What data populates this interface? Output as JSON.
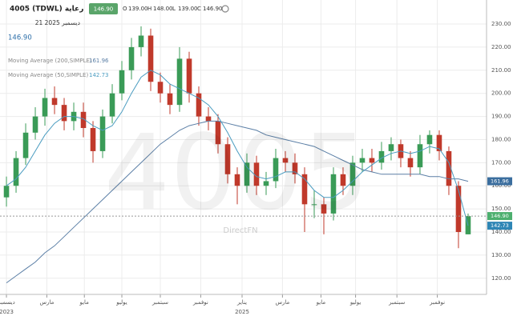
{
  "chart_data": {
    "type": "candlestick",
    "title": "4005 (TDWL) رعاية",
    "subtitle": "21 ديسمبر 2025",
    "last_label": "146.90",
    "readout": {
      "keys": [
        "O",
        "H",
        "L",
        "C"
      ],
      "labels": [
        "139.00",
        "148.00",
        "139.00",
        "146.90"
      ]
    },
    "watermark": "4005",
    "brand": "DirectFN",
    "up_color": "#3a9b57",
    "down_color": "#c0392b",
    "ohlc": {
      "open": [
        155,
        160,
        172,
        183,
        190,
        198,
        195,
        188,
        192,
        185,
        175,
        190,
        200,
        210,
        220,
        225,
        205,
        200,
        195,
        215,
        200,
        190,
        188,
        178,
        165,
        160,
        170,
        160,
        162,
        172,
        170,
        165,
        152,
        152,
        148,
        165,
        160,
        170,
        172,
        170,
        175,
        178,
        172,
        168,
        178,
        182,
        175,
        160,
        139
      ],
      "high": [
        164,
        175,
        187,
        194,
        202,
        203,
        198,
        196,
        196,
        188,
        193,
        204,
        214,
        224,
        229,
        228,
        209,
        204,
        220,
        218,
        203,
        194,
        191,
        181,
        168,
        174,
        173,
        166,
        176,
        175,
        174,
        168,
        158,
        155,
        168,
        168,
        173,
        176,
        176,
        179,
        181,
        180,
        175,
        182,
        184,
        184,
        177,
        162,
        148
      ],
      "low": [
        151,
        157,
        169,
        180,
        186,
        191,
        184,
        184,
        181,
        170,
        172,
        187,
        197,
        206,
        216,
        201,
        196,
        191,
        192,
        196,
        186,
        184,
        174,
        161,
        152,
        157,
        156,
        156,
        159,
        166,
        161,
        140,
        146,
        139,
        145,
        156,
        156,
        166,
        166,
        167,
        171,
        168,
        164,
        165,
        174,
        171,
        156,
        133,
        139
      ],
      "close": [
        160,
        172,
        183,
        190,
        198,
        195,
        188,
        192,
        185,
        175,
        190,
        200,
        210,
        220,
        225,
        205,
        200,
        195,
        215,
        200,
        190,
        188,
        178,
        165,
        160,
        170,
        160,
        162,
        172,
        170,
        165,
        152,
        152,
        148,
        165,
        160,
        170,
        172,
        170,
        175,
        178,
        172,
        168,
        178,
        182,
        175,
        160,
        140,
        146.9
      ]
    },
    "series": [
      {
        "name": "Moving Average (200,SIMPLE)",
        "color": "#5b7fa6",
        "value_label": "161.96",
        "values": [
          118,
          121,
          124,
          127,
          131,
          134,
          138,
          142,
          146,
          150,
          154,
          158,
          162,
          166,
          170,
          174,
          178,
          181,
          184,
          186,
          187,
          188,
          188,
          187,
          186,
          185,
          184,
          182,
          181,
          180,
          179,
          178,
          177,
          175,
          173,
          171,
          169,
          167,
          166,
          165,
          165,
          165,
          165,
          165,
          164,
          164,
          163,
          163,
          161.96
        ]
      },
      {
        "name": "Moving Average (50,SIMPLE)",
        "color": "#4a9cc0",
        "value_label": "142.73",
        "values": [
          160,
          163,
          168,
          175,
          182,
          187,
          190,
          190,
          189,
          186,
          184,
          186,
          192,
          200,
          207,
          210,
          208,
          204,
          202,
          200,
          198,
          195,
          190,
          183,
          175,
          168,
          164,
          163,
          164,
          166,
          166,
          163,
          158,
          155,
          155,
          158,
          162,
          166,
          169,
          172,
          174,
          175,
          174,
          175,
          177,
          176,
          170,
          158,
          142.73
        ]
      }
    ],
    "xlim": [
      -0.67,
      49.92
    ],
    "xticks": [
      {
        "value": 0,
        "label": "ديسمبر"
      },
      {
        "value": 4.2,
        "label": "مارس"
      },
      {
        "value": 8.1,
        "label": "مايو"
      },
      {
        "value": 12,
        "label": "يوليو"
      },
      {
        "value": 16,
        "label": "سبتمبر"
      },
      {
        "value": 20.2,
        "label": "نوفمبر"
      },
      {
        "value": 24.5,
        "label": "يناير"
      },
      {
        "value": 28.7,
        "label": "مارس"
      },
      {
        "value": 32.7,
        "label": "مايو"
      },
      {
        "value": 36.3,
        "label": "يوليو"
      },
      {
        "value": 40.6,
        "label": "سبتمبر"
      },
      {
        "value": 44.8,
        "label": "نوفمبر"
      }
    ],
    "year_labels": [
      {
        "value": 0,
        "label": "2023"
      },
      {
        "value": 24.5,
        "label": "2025"
      }
    ],
    "ylim": [
      113,
      240.4
    ],
    "yticks": [
      {
        "value": 120,
        "label": "120.00"
      },
      {
        "value": 130,
        "label": "130.00"
      },
      {
        "value": 140,
        "label": "140.00"
      },
      {
        "value": 150,
        "label": "150.00"
      },
      {
        "value": 160,
        "label": "160.00"
      },
      {
        "value": 170,
        "label": "170.00"
      },
      {
        "value": 180,
        "label": "180.00"
      },
      {
        "value": 190,
        "label": "190.00"
      },
      {
        "value": 200,
        "label": "200.00"
      },
      {
        "value": 210,
        "label": "210.00"
      },
      {
        "value": 220,
        "label": "220.00"
      },
      {
        "value": 230,
        "label": "230.00"
      }
    ],
    "grid": true
  }
}
